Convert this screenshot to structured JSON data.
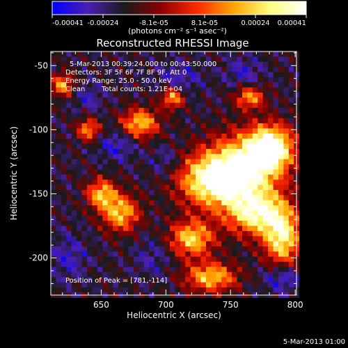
{
  "chart_data": {
    "type": "heatmap",
    "title": "Reconstructed RHESSI Image",
    "xlabel": "Heliocentric X (arcsec)",
    "ylabel": "Heliocentric Y (arcsec)",
    "xlim": [
      611,
      801
    ],
    "ylim": [
      -229,
      -39
    ],
    "x_ticks": [
      650,
      700,
      750,
      800
    ],
    "y_ticks": [
      -50,
      -100,
      -150,
      -200
    ],
    "colorbar": {
      "ticks": [
        "-0.00041",
        "-0.00024",
        "-8.1e-05",
        "8.1e-05",
        "0.00024",
        "0.00041"
      ],
      "range": [
        -0.00041,
        0.00041
      ],
      "unit_label": "(photons cm⁻² s⁻¹ asec⁻²)",
      "colors": [
        "#0000ff",
        "#4b1fb0",
        "#1a1a1a",
        "#8b0000",
        "#ff2a00",
        "#ffa500",
        "#ffff80",
        "#ffffff"
      ]
    },
    "info": {
      "time_range": "5-Mar-2013 00:39:24.000 to 00:43:50.000",
      "detectors": "Detectors: 3F 5F 6F 7F 8F 9F, Att 0",
      "energy": "Energy Range: 25.0 - 50.0 keV",
      "clean": "Clean",
      "total_counts": "Total counts: 1.21E+04",
      "peak": "Position of Peak = [781,-114]"
    },
    "peak_position": [
      781,
      -114
    ],
    "hot_regions": [
      {
        "x": 781,
        "y": -114,
        "intensity": 1.0,
        "sx": 12,
        "sy": 12
      },
      {
        "x": 760,
        "y": -130,
        "intensity": 0.8,
        "sx": 20,
        "sy": 18
      },
      {
        "x": 735,
        "y": -140,
        "intensity": 0.75,
        "sx": 18,
        "sy": 14
      },
      {
        "x": 770,
        "y": -165,
        "intensity": 0.75,
        "sx": 16,
        "sy": 12
      },
      {
        "x": 790,
        "y": -185,
        "intensity": 0.7,
        "sx": 10,
        "sy": 16
      },
      {
        "x": 720,
        "y": -185,
        "intensity": 0.6,
        "sx": 12,
        "sy": 10
      },
      {
        "x": 735,
        "y": -215,
        "intensity": 0.55,
        "sx": 14,
        "sy": 8
      },
      {
        "x": 665,
        "y": -165,
        "intensity": 0.55,
        "sx": 10,
        "sy": 10
      },
      {
        "x": 650,
        "y": -150,
        "intensity": 0.5,
        "sx": 8,
        "sy": 8
      },
      {
        "x": 680,
        "y": -95,
        "intensity": 0.55,
        "sx": 10,
        "sy": 8
      },
      {
        "x": 705,
        "y": -75,
        "intensity": 0.45,
        "sx": 6,
        "sy": 6
      },
      {
        "x": 640,
        "y": -100,
        "intensity": 0.4,
        "sx": 6,
        "sy": 6
      },
      {
        "x": 765,
        "y": -75,
        "intensity": 0.4,
        "sx": 8,
        "sy": 6
      },
      {
        "x": 620,
        "y": -65,
        "intensity": 0.45,
        "sx": 6,
        "sy": 6
      }
    ],
    "cold_regions": [
      {
        "x": 790,
        "y": -215,
        "intensity": -0.8,
        "sx": 10,
        "sy": 8
      },
      {
        "x": 662,
        "y": -112,
        "intensity": -0.6,
        "sx": 10,
        "sy": 8
      },
      {
        "x": 710,
        "y": -60,
        "intensity": -0.55,
        "sx": 12,
        "sy": 8
      },
      {
        "x": 625,
        "y": -200,
        "intensity": -0.5,
        "sx": 10,
        "sy": 12
      },
      {
        "x": 760,
        "y": -55,
        "intensity": -0.5,
        "sx": 10,
        "sy": 8
      },
      {
        "x": 700,
        "y": -125,
        "intensity": -0.45,
        "sx": 8,
        "sy": 8
      },
      {
        "x": 640,
        "y": -75,
        "intensity": -0.45,
        "sx": 8,
        "sy": 8
      },
      {
        "x": 690,
        "y": -200,
        "intensity": -0.4,
        "sx": 10,
        "sy": 10
      }
    ]
  },
  "footer": {
    "timestamp": "5-Mar-2013 01:00"
  }
}
